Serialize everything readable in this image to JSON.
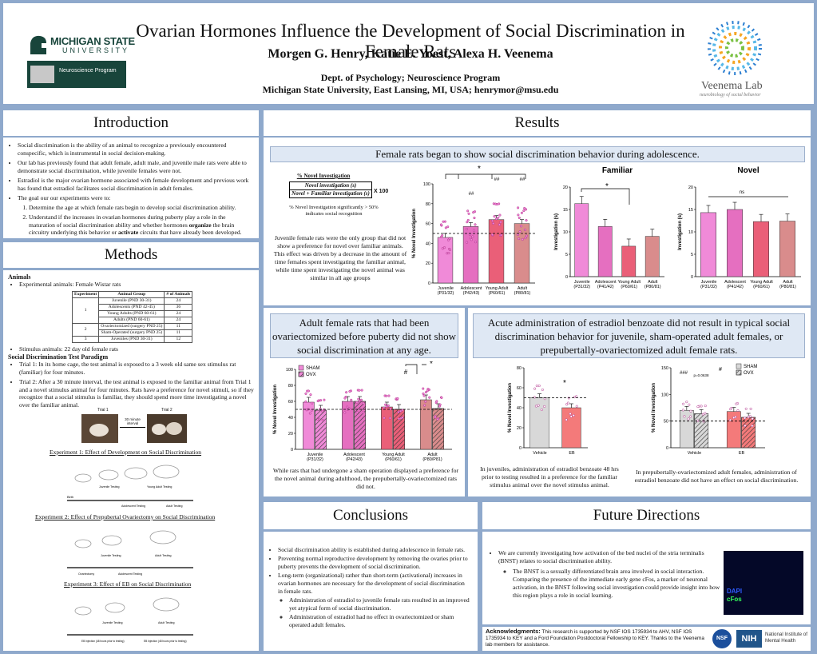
{
  "header": {
    "title": "Ovarian Hormones Influence the Development of Social Discrimination in Female Rats",
    "authors": "Morgen G. Henry, Katie E. Yoest, Alexa H. Veenema",
    "affil1": "Dept. of Psychology; Neuroscience Program",
    "affil2": "Michigan State University, East Lansing, MI, USA; henrymor@msu.edu",
    "msu_logo": "MICHIGAN STATE",
    "msu_logo2": "UNIVERSITY",
    "neuro_logo": "Neuroscience Program",
    "lab_logo": "Veenema Lab",
    "lab_tag": "neurobiology of social behavior"
  },
  "intro": {
    "heading": "Introduction",
    "b1": "Social discrimination is the ability of an animal to recognize a previously encountered conspecific, which is instrumental in social decision-making.",
    "b2": "Our lab has previously found that adult female, adult male, and juvenile male rats were able to demonstrate social discrimination, while juvenile females were not.",
    "b3": "Estradiol is the major ovarian hormone associated with female development and previous work has found that estradiol facilitates social discrimination in adult females.",
    "b4": "The goal our our experiments were to:",
    "g1": "Determine the age at which female rats begin to develop social discrimination ability.",
    "g2a": "Understand if the increases in ovarian hormones during puberty play a role in the maturation of social discrimination ability and whether hormones ",
    "g2b": "organize",
    "g2c": " the brain circuitry underlying this behavior or ",
    "g2d": "activate",
    "g2e": " circuits that have already been developed."
  },
  "methods": {
    "heading": "Methods",
    "animals": "Animals",
    "exp_animals": "Experimental animals: Female Wistar rats",
    "table_headers": [
      "Experiment",
      "Animal Group",
      "# of Animals"
    ],
    "table_rows": [
      [
        "1",
        "Juvenile (PND 30-31)",
        "24"
      ],
      [
        "",
        "Adolescents (PND 42-45)",
        "36"
      ],
      [
        "",
        "Young Adults (PND 60-61)",
        "24"
      ],
      [
        "",
        "Adults (PND 60-61)",
        "24"
      ],
      [
        "2",
        "Ovariectomized (surgery PND 25)",
        "11"
      ],
      [
        "",
        "Sham-Operated (surgery PND 25)",
        "11"
      ],
      [
        "3",
        "Juveniles (PND 30-31)",
        "12"
      ]
    ],
    "stim": "Stimulus animals: 22 day old female rats",
    "paradigm": "Social Discrimination Test Paradigm",
    "t1": "Trial 1: In its home cage, the test animal is exposed to a 3 week old same sex stimulus rat (familiar) for four minutes.",
    "t2": "Trial 2: After a 30 minute interval, the test animal is exposed to the familiar animal from Trial 1 and a novel stimulus animal for four minutes. Rats have a preference for novel stimuli, so if they recognize that a social stimulus is familiar, they should spend more time investigating a novel over the familiar animal.",
    "trial1": "Trial 1",
    "trial2": "Trial 2",
    "interval": "30 minute interval",
    "exp1": "Experiment 1: Effect of Development on Social Discrimination",
    "exp2": "Experiment 2: Effect of Prepubertal Ovariectomy on Social Discrimination",
    "exp3": "Experiment 3: Effect of EB on Social Discrimination",
    "tl1": [
      "Juvenile Testing",
      "Young Adult Testing",
      "Adolescent Testing",
      "Adult Testing"
    ],
    "tl2": [
      "Juvenile Testing",
      "Adult Testing",
      "Ovariectomy",
      "Adolescent Testing"
    ],
    "tl3": [
      "Juvenile Testing",
      "Adult Testing",
      "EB Injection (48 hours prior to testing)",
      "EB Injection (48 hours prior to testing)"
    ],
    "birth": "Birth"
  },
  "results": {
    "heading": "Results",
    "sub1": "Female rats began to show social discrimination behavior during adolescence.",
    "formula_title": "% Novel Investigation",
    "formula_num": "Novel investigation (s)",
    "formula_den": "Novel + Familiar investigation (s)",
    "formula_x": "X 100",
    "formula_note": "% Novel Investigation significantly > 50% indicates social recognition",
    "cap1": "Juvenile female rats were the only group that did not show a preference for novel over familiar animals. This effect was driven by a decrease in the amount of time females spent investigating the familiar animal, while time spent investigating the novel animal was similar in all age groups",
    "sub2": "Adult female rats that had been ovariectomized before puberty did not show social discrimination at any age.",
    "cap2": "While rats that had undergone a sham operation displayed a preference for the novel animal during adulthood, the prepubertally-ovariectomized rats did not.",
    "sub3": "Acute administration of estradiol benzoate did not result in typical social discrimination behavior for juvenile, sham-operated adult females, or prepubertally-ovariectomized adult female rats.",
    "cap3a": "In juveniles, administration of estradiol benzoate 48 hrs prior to testing resulted in a preference for the familiar stimulus animal over the novel stimulus animal.",
    "cap3b": "In prepubertally-ovariectomized adult females, administration of estradiol benzoate did not have an effect on social discrimination."
  },
  "conclusions": {
    "heading": "Conclusions",
    "c1": "Social discrimination ability is established during adolescence in female rats.",
    "c2": "Preventing normal reproductive development by removing the ovaries prior to puberty prevents the development of social discrimination.",
    "c3": "Long-term (organizational) rather than short-term (activational) increases in ovarian hormones are necessary for the development of social discrimination in female rats.",
    "c4": "Administration of estradiol to juvenile female rats resulted in an improved yet atypical form of social discrimination.",
    "c5": "Administration of estradiol had no effect in ovariectomized or sham operated adult females."
  },
  "future": {
    "heading": "Future Directions",
    "f1": "We are currently investigating how activation of the bed nuclei of the stria terminalis (BNST) relates to social discrimination ability.",
    "f2": "The BNST is a sexually differentiated brain area involved in social interaction. Comparing the presence of the immediate early gene cFos, a marker of neuronal activation, in the BNST following social investigation could provide insight into how this region plays a role in social learning.",
    "dapi": "DAPI",
    "cfos": "cFos"
  },
  "ack": {
    "label": "Acknowledgments:",
    "text": " This research is supported by NSF IOS 1735934 to AHV, NSF IOS 1735934 to KEY and a Ford Foundation Postdoctoral Fellowship to KEY. Thanks to the Veenema lab members for assistance.",
    "nsf": "NSF",
    "nih": "NIH",
    "nimh": "National Institute of Mental Health"
  },
  "chart_data": [
    {
      "type": "bar",
      "id": "fig1a",
      "categories": [
        "Juvenile (P31/32)",
        "Adolescent (P42/43)",
        "Young Adult (P60/61)",
        "Adult (P80/81)"
      ],
      "values": [
        46,
        57,
        64,
        60
      ],
      "ylabel": "% Novel Investigation",
      "ylim": [
        0,
        100
      ],
      "yticks": [
        0,
        20,
        40,
        60,
        80,
        100
      ],
      "reference_line": 50,
      "annotations": [
        "*",
        "##",
        "##",
        "##"
      ],
      "colors": [
        "#f08ad8",
        "#e56fc0",
        "#ea5f78",
        "#d98c8c"
      ]
    },
    {
      "type": "bar",
      "id": "fig1b",
      "title": "Familiar",
      "categories": [
        "Juvenile (P31/32)",
        "Adolescent (P41/42)",
        "Young Adult (P60/61)",
        "Adult (P80/81)"
      ],
      "values": [
        16.3,
        11.2,
        6.8,
        9
      ],
      "ylabel": "Investigation (s)",
      "ylim": [
        0,
        20
      ],
      "yticks": [
        0,
        5,
        10,
        15,
        20
      ],
      "annotations": [
        "*"
      ],
      "colors": [
        "#f08ad8",
        "#e56fc0",
        "#ea5f78",
        "#d98c8c"
      ]
    },
    {
      "type": "bar",
      "id": "fig1c",
      "title": "Novel",
      "categories": [
        "Juvenile (P31/32)",
        "Adolescent (P41/42)",
        "Young Adult (P60/61)",
        "Adult (P80/81)"
      ],
      "values": [
        14.3,
        15,
        12.3,
        12.4
      ],
      "ylabel": "Investigation (s)",
      "ylim": [
        0,
        20
      ],
      "yticks": [
        0,
        5,
        10,
        15,
        20
      ],
      "annotations": [
        "ns"
      ],
      "colors": [
        "#f08ad8",
        "#e56fc0",
        "#ea5f78",
        "#d98c8c"
      ]
    },
    {
      "type": "bar",
      "id": "fig2",
      "categories": [
        "Juvenile (P31/32)",
        "Adolescent (P42/43)",
        "Young Adult (P60/61)",
        "Adult (P80/P81)"
      ],
      "series": [
        {
          "name": "SHAM",
          "values": [
            59,
            60,
            53,
            62
          ]
        },
        {
          "name": "OVX",
          "values": [
            49,
            60,
            50,
            51
          ]
        }
      ],
      "ylabel": "% Novel Investigation",
      "ylim": [
        0,
        100
      ],
      "yticks": [
        0,
        20,
        40,
        60,
        80,
        100
      ],
      "reference_line": 50,
      "annotations": [
        "#",
        "*"
      ],
      "colors": [
        "#f08ad8",
        "#e56fc0",
        "#ea5f78",
        "#d98c8c"
      ]
    },
    {
      "type": "bar",
      "id": "fig3a",
      "categories": [
        "Vehicle",
        "EB"
      ],
      "values": [
        50,
        40
      ],
      "ylabel": "% Novel Investigation",
      "ylim": [
        0,
        80
      ],
      "yticks": [
        0,
        20,
        40,
        60,
        80
      ],
      "reference_line": 50,
      "annotations": [
        "*"
      ],
      "colors": [
        "#d8d8d8",
        "#f47a7a"
      ]
    },
    {
      "type": "bar",
      "id": "fig3b",
      "categories": [
        "Vehicle",
        "EB"
      ],
      "series": [
        {
          "name": "SHAM",
          "values": [
            70,
            68
          ]
        },
        {
          "name": "OVX",
          "values": [
            64,
            57
          ]
        }
      ],
      "ylabel": "% Novel Investigation",
      "ylim": [
        0,
        150
      ],
      "yticks": [
        0,
        50,
        100,
        150
      ],
      "reference_line": 50,
      "annotations": [
        "###",
        "p=0.0638",
        "#"
      ],
      "colors": [
        "#d8d8d8",
        "#f47a7a"
      ]
    }
  ]
}
